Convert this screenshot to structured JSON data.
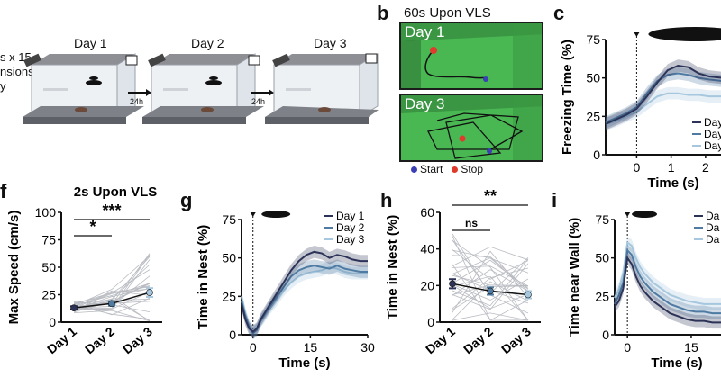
{
  "figure": {
    "panel_a": {
      "left_text_lines": [
        "s x 15",
        "nsions",
        "y"
      ],
      "days": [
        "Day 1",
        "Day 2",
        "Day 3"
      ],
      "gap_labels": [
        "24h",
        "24h"
      ]
    },
    "panel_b": {
      "letter": "b",
      "title": "60s Upon VLS",
      "photo1_label": "Day 1",
      "photo2_label": "Day 3",
      "legend": {
        "start": "Start",
        "stop": "Stop"
      },
      "colors": {
        "start": "#3b3fb5",
        "stop": "#e03a2c",
        "arena": "#47b44e"
      }
    },
    "panel_c": {
      "letter": "c",
      "ylabel": "Freezing Time (%)",
      "xlabel": "Time (s)",
      "yticks": [
        "0",
        "25",
        "50",
        "75"
      ],
      "xticks": [
        "0",
        "1",
        "2"
      ],
      "legend": [
        "Day",
        "Day",
        "Day"
      ]
    },
    "panel_f": {
      "letter": "f",
      "title": "2s Upon VLS",
      "ylabel": "Max Speed (cm/s)",
      "yticks": [
        "0",
        "25",
        "50",
        "75",
        "100"
      ],
      "xticks": [
        "Day 1",
        "Day 2",
        "Day 3"
      ],
      "sig1": "*",
      "sig2": "***"
    },
    "panel_g": {
      "letter": "g",
      "ylabel": "Time in Nest (%)",
      "xlabel": "Time (s)",
      "yticks": [
        "0",
        "25",
        "50",
        "75"
      ],
      "xticks": [
        "0",
        "15",
        "30"
      ],
      "legend": [
        "Day 1",
        "Day 2",
        "Day 3"
      ]
    },
    "panel_h": {
      "letter": "h",
      "ylabel": "Time in Nest (%)",
      "yticks": [
        "0",
        "20",
        "40",
        "60"
      ],
      "xticks": [
        "Day 1",
        "Day 2",
        "Day 3"
      ],
      "sig1": "ns",
      "sig2": "**"
    },
    "panel_i": {
      "letter": "i",
      "ylabel": "Time near Wall (%)",
      "xlabel": "Time (s)",
      "yticks": [
        "0",
        "25",
        "50",
        "75"
      ],
      "xticks": [
        "0",
        "15"
      ],
      "legend": [
        "Da",
        "Da",
        "Da"
      ]
    },
    "series_colors": [
      "#2c3357",
      "#4f7ba3",
      "#a6c7dd"
    ]
  },
  "chart_data": [
    {
      "type": "line",
      "id": "c",
      "ylabel": "Freezing Time (%)",
      "xlabel": "Time (s)",
      "xlim": [
        -0.9,
        2.5
      ],
      "ylim": [
        0,
        75
      ],
      "series": [
        {
          "x": [
            -0.9,
            -0.6,
            -0.3,
            0,
            0.3,
            0.6,
            0.9,
            1.2,
            1.5,
            1.8,
            2.1,
            2.5
          ],
          "y": [
            20,
            23,
            26,
            30,
            38,
            47,
            55,
            58,
            57,
            53,
            51,
            50
          ]
        },
        {
          "x": [
            -0.9,
            -0.6,
            -0.3,
            0,
            0.3,
            0.6,
            0.9,
            1.2,
            1.5,
            1.8,
            2.1,
            2.5
          ],
          "y": [
            21,
            24,
            27,
            31,
            40,
            48,
            52,
            53,
            52,
            50,
            49,
            48
          ]
        },
        {
          "x": [
            -0.9,
            -0.6,
            -0.3,
            0,
            0.3,
            0.6,
            0.9,
            1.2,
            1.5,
            1.8,
            2.1,
            2.5
          ],
          "y": [
            20,
            22,
            25,
            28,
            33,
            38,
            40,
            40,
            39,
            39,
            38,
            38
          ]
        }
      ]
    },
    {
      "type": "line",
      "id": "g",
      "ylabel": "Time in Nest (%)",
      "xlabel": "Time (s)",
      "xlim": [
        -3,
        30
      ],
      "ylim": [
        0,
        75
      ],
      "series": [
        {
          "name": "Day 1",
          "x": [
            -3,
            -2,
            -1,
            0,
            1,
            2,
            3,
            4,
            6,
            8,
            10,
            12,
            14,
            16,
            18,
            20,
            22,
            24,
            26,
            28,
            30
          ],
          "y": [
            20,
            10,
            4,
            2,
            4,
            10,
            14,
            18,
            26,
            34,
            42,
            48,
            52,
            54,
            53,
            50,
            52,
            51,
            49,
            48,
            48
          ]
        },
        {
          "name": "Day 2",
          "x": [
            -3,
            -2,
            -1,
            0,
            1,
            2,
            3,
            4,
            6,
            8,
            10,
            12,
            14,
            16,
            18,
            20,
            22,
            24,
            26,
            28,
            30
          ],
          "y": [
            22,
            12,
            5,
            1,
            3,
            9,
            13,
            17,
            24,
            31,
            38,
            42,
            44,
            45,
            44,
            43,
            45,
            43,
            42,
            41,
            41
          ]
        },
        {
          "name": "Day 3",
          "x": [
            -3,
            -2,
            -1,
            0,
            1,
            2,
            3,
            4,
            6,
            8,
            10,
            12,
            14,
            16,
            18,
            20,
            22,
            24,
            26,
            28,
            30
          ],
          "y": [
            25,
            14,
            6,
            2,
            4,
            9,
            12,
            16,
            22,
            29,
            34,
            38,
            40,
            41,
            42,
            44,
            43,
            41,
            40,
            40,
            40
          ]
        }
      ]
    },
    {
      "type": "line",
      "id": "i",
      "ylabel": "Time near Wall (%)",
      "xlabel": "Time (s)",
      "xlim": [
        -3,
        22
      ],
      "ylim": [
        0,
        75
      ],
      "series": [
        {
          "x": [
            -3,
            -2,
            -1,
            0,
            1,
            2,
            3,
            4,
            6,
            8,
            10,
            12,
            14,
            16,
            18,
            20,
            22
          ],
          "y": [
            18,
            22,
            30,
            50,
            46,
            38,
            32,
            28,
            22,
            18,
            14,
            12,
            10,
            9,
            9,
            8,
            8
          ]
        },
        {
          "x": [
            -3,
            -2,
            -1,
            0,
            1,
            2,
            3,
            4,
            6,
            8,
            10,
            12,
            14,
            16,
            18,
            20,
            22
          ],
          "y": [
            20,
            26,
            34,
            55,
            52,
            44,
            38,
            34,
            28,
            24,
            20,
            18,
            16,
            15,
            15,
            14,
            14
          ]
        },
        {
          "x": [
            -3,
            -2,
            -1,
            0,
            1,
            2,
            3,
            4,
            6,
            8,
            10,
            12,
            14,
            16,
            18,
            20,
            22
          ],
          "y": [
            24,
            30,
            40,
            60,
            58,
            50,
            44,
            40,
            34,
            30,
            26,
            24,
            22,
            21,
            20,
            20,
            20
          ]
        }
      ]
    },
    {
      "type": "scatter",
      "id": "f",
      "title": "2s Upon VLS",
      "ylabel": "Max Speed (cm/s)",
      "categories": [
        "Day 1",
        "Day 2",
        "Day 3"
      ],
      "ylim": [
        0,
        100
      ],
      "mean": [
        13,
        17,
        27
      ],
      "sem": [
        1.5,
        2,
        4
      ]
    },
    {
      "type": "scatter",
      "id": "h",
      "ylabel": "Time in Nest (%)",
      "categories": [
        "Day 1",
        "Day 2",
        "Day 3"
      ],
      "ylim": [
        0,
        60
      ],
      "mean": [
        21,
        17,
        15
      ],
      "sem": [
        2.5,
        2,
        2
      ]
    }
  ]
}
